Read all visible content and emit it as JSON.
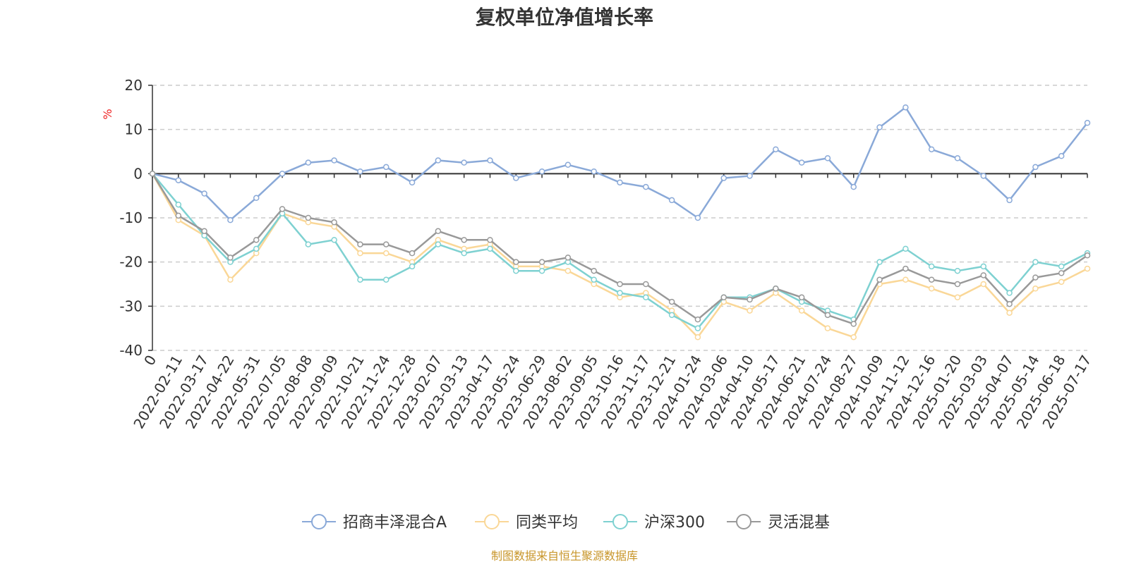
{
  "chart_data": {
    "type": "line",
    "title": "复权单位净值增长率",
    "ylabel": "%",
    "ylim": [
      -40,
      20
    ],
    "yticks": [
      20,
      10,
      0,
      -10,
      -20,
      -30,
      -40
    ],
    "grid": true,
    "legend_position": "bottom",
    "source": "制图数据来自恒生聚源数据库",
    "categories": [
      "0",
      "2022-02-11",
      "2022-03-17",
      "2022-04-22",
      "2022-05-31",
      "2022-07-05",
      "2022-08-08",
      "2022-09-09",
      "2022-10-21",
      "2022-11-24",
      "2022-12-28",
      "2023-02-07",
      "2023-03-13",
      "2023-04-17",
      "2023-05-24",
      "2023-06-29",
      "2023-08-02",
      "2023-09-05",
      "2023-10-16",
      "2023-11-17",
      "2023-12-21",
      "2024-01-24",
      "2024-03-06",
      "2024-04-10",
      "2024-05-17",
      "2024-06-21",
      "2024-07-24",
      "2024-08-27",
      "2024-10-09",
      "2024-11-12",
      "2024-12-16",
      "2025-01-20",
      "2025-03-03",
      "2025-04-07",
      "2025-05-14",
      "2025-06-18",
      "2025-07-17"
    ],
    "series": [
      {
        "name": "招商丰泽混合A",
        "color": "#8aa9d8",
        "values": [
          0,
          -1.5,
          -4.5,
          -10.5,
          -5.5,
          0,
          2.5,
          3,
          0.5,
          1.5,
          -2,
          3,
          2.5,
          3,
          -1,
          0.5,
          2,
          0.5,
          -2,
          -3,
          -6,
          -10,
          -1,
          -0.5,
          5.5,
          2.5,
          3.5,
          -3,
          10.5,
          15,
          5.5,
          3.5,
          -0.5,
          -6,
          1.5,
          4,
          11.5
        ]
      },
      {
        "name": "同类平均",
        "color": "#fad797",
        "values": [
          0,
          -10.5,
          -14,
          -24,
          -18,
          -9,
          -11,
          -12,
          -18,
          -18,
          -20,
          -15,
          -17,
          -16,
          -21,
          -21,
          -22,
          -25,
          -28,
          -27,
          -31,
          -37,
          -29,
          -31,
          -27,
          -31,
          -35,
          -37,
          -25,
          -24,
          -26,
          -28,
          -25,
          -31.5,
          -26,
          -24.5,
          -21.5
        ]
      },
      {
        "name": "沪深300",
        "color": "#7ed1d1",
        "values": [
          0,
          -7,
          -14,
          -20,
          -17,
          -9,
          -16,
          -15,
          -24,
          -24,
          -21,
          -16,
          -18,
          -17,
          -22,
          -22,
          -20,
          -24,
          -27,
          -28,
          -32,
          -35,
          -28,
          -28,
          -26,
          -29,
          -31,
          -33,
          -20,
          -17,
          -21,
          -22,
          -21,
          -27,
          -20,
          -21,
          -18
        ]
      },
      {
        "name": "灵活混基",
        "color": "#999999",
        "values": [
          0,
          -9.5,
          -13,
          -19,
          -15,
          -8,
          -10,
          -11,
          -16,
          -16,
          -18,
          -13,
          -15,
          -15,
          -20,
          -20,
          -19,
          -22,
          -25,
          -25,
          -29,
          -33,
          -28,
          -28.5,
          -26,
          -28,
          -32,
          -34,
          -24,
          -21.5,
          -24,
          -25,
          -23,
          -29.5,
          -23.5,
          -22.5,
          -18.5
        ]
      }
    ]
  }
}
